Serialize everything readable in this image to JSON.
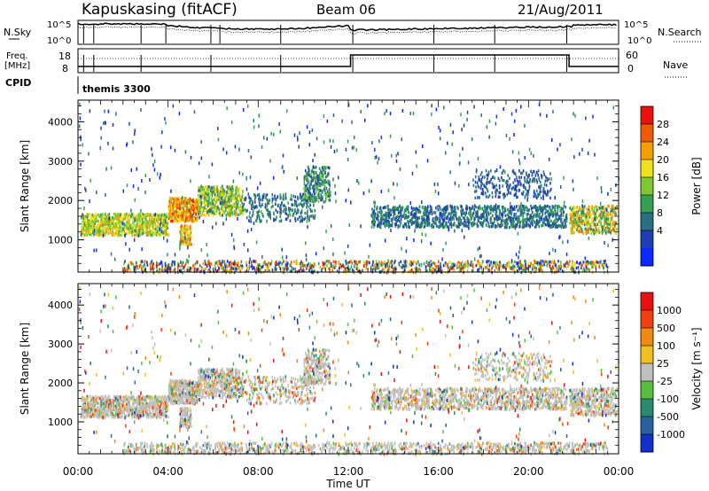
{
  "header": {
    "title": "Kapuskasing (fitACF)",
    "beam": "Beam 06",
    "date": "21/Aug/2011"
  },
  "top_panels": {
    "nsky_label": "N.Sky",
    "nsky_ticks": [
      "10^5",
      "10^0"
    ],
    "nsearch_label": "N.Search",
    "nsearch_ticks": [
      "10^5",
      "10^0"
    ],
    "freq_label_1": "Freq.",
    "freq_label_2": "[MHz]",
    "freq_ticks": [
      "18",
      "8"
    ],
    "nave_label": "Nave",
    "nave_ticks": [
      "60",
      "0"
    ],
    "cpid_label": "CPID",
    "cpid_value": "themis 3300"
  },
  "chart_data": [
    {
      "type": "heatmap",
      "name": "power",
      "ylabel": "Slant Range [km]",
      "yticks": [
        1000,
        2000,
        3000,
        4000
      ],
      "ylim": [
        180,
        4550
      ],
      "xlim": [
        0,
        24
      ],
      "colorbar": {
        "label": "Power [dB]",
        "ticks": [
          "28",
          "24",
          "20",
          "16",
          "12",
          "8",
          "4"
        ],
        "colors": [
          "#0a28ff",
          "#1e3fb4",
          "#2a7080",
          "#34a050",
          "#7fc832",
          "#f0e020",
          "#f5a000",
          "#f05a00",
          "#e81010"
        ]
      }
    },
    {
      "type": "heatmap",
      "name": "velocity",
      "ylabel": "Slant Range [km]",
      "yticks": [
        1000,
        2000,
        3000,
        4000
      ],
      "ylim": [
        180,
        4550
      ],
      "xlim": [
        0,
        24
      ],
      "xlabel": "Time UT",
      "xticks": [
        "00:00",
        "04:00",
        "08:00",
        "12:00",
        "16:00",
        "20:00",
        "00:00"
      ],
      "colorbar": {
        "label": "Velocity [m s⁻¹]",
        "ticks": [
          "1000",
          "500",
          "100",
          "25",
          "-25",
          "-100",
          "-500",
          "-1000"
        ],
        "colors": [
          "#1030c8",
          "#2860a0",
          "#2a8a70",
          "#55c040",
          "#c0c0c0",
          "#f0c020",
          "#f08a10",
          "#f04010",
          "#e81010"
        ]
      }
    }
  ]
}
